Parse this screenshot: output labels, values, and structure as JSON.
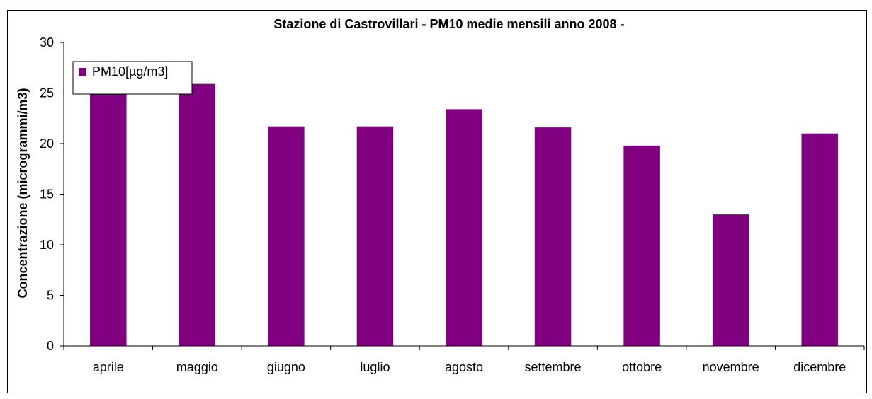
{
  "chart_data": {
    "type": "bar",
    "title": "Stazione di Castrovillari - PM10 medie mensili anno 2008 -",
    "ylabel": "Concentrazione (microgrammi/m3)",
    "xlabel": "",
    "categories": [
      "aprile",
      "maggio",
      "giugno",
      "luglio",
      "agosto",
      "settembre",
      "ottobre",
      "novembre",
      "dicembre"
    ],
    "series": [
      {
        "name": "PM10[µg/m3]",
        "color": "#800080",
        "values": [
          25.0,
          25.9,
          21.7,
          21.7,
          23.4,
          21.6,
          19.8,
          13.0,
          21.0
        ]
      }
    ],
    "ylim": [
      0,
      30
    ],
    "yticks": [
      0,
      5,
      10,
      15,
      20,
      25,
      30
    ],
    "grid": false,
    "legend_position": "top-left"
  }
}
